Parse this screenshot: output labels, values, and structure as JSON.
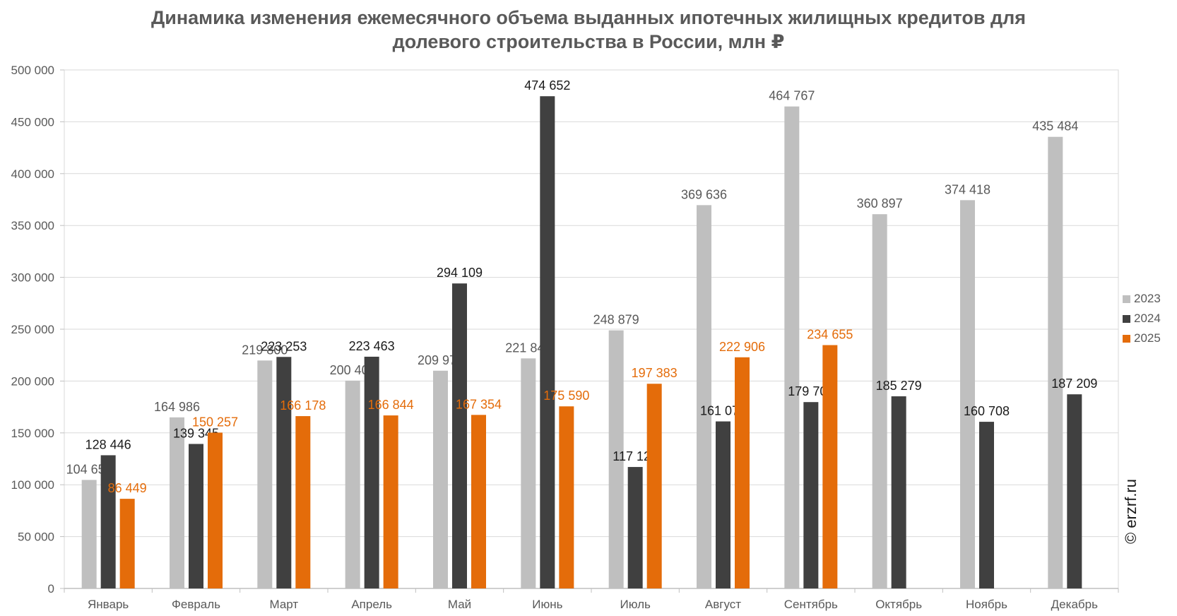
{
  "title_lines": [
    "Динамика изменения ежемесячного объема выданных ипотечных жилищных кредитов для",
    "долевого строительства в России, млн ₽"
  ],
  "watermark": "© erzrf.ru",
  "chart_data": {
    "type": "bar",
    "title": "Динамика изменения ежемесячного объема выданных ипотечных жилищных кредитов для долевого строительства в России, млн ₽",
    "categories": [
      "Январь",
      "Февраль",
      "Март",
      "Апрель",
      "Май",
      "Июнь",
      "Июль",
      "Август",
      "Сентябрь",
      "Октябрь",
      "Ноябрь",
      "Декабрь"
    ],
    "series": [
      {
        "name": "2023",
        "color": "#bfbfbf",
        "label_color": "#595959",
        "values": [
          104650,
          164986,
          219800,
          200407,
          209975,
          221848,
          248879,
          369636,
          464767,
          360897,
          374418,
          435484
        ],
        "labels": [
          "104 650",
          "164 986",
          "219 800",
          "200 407",
          "209 975",
          "221 848",
          "248 879",
          "369 636",
          "464 767",
          "360 897",
          "374 418",
          "435 484"
        ]
      },
      {
        "name": "2024",
        "color": "#404040",
        "label_color": "#1a1a1a",
        "values": [
          128446,
          139345,
          223253,
          223463,
          294109,
          474652,
          117125,
          161077,
          179703,
          185279,
          160708,
          187209
        ],
        "labels": [
          "128 446",
          "139 345",
          "223 253",
          "223 463",
          "294 109",
          "474 652",
          "117 125",
          "161 077",
          "179 703",
          "185 279",
          "160 708",
          "187 209"
        ]
      },
      {
        "name": "2025",
        "color": "#e46c0a",
        "label_color": "#e46c0a",
        "values": [
          86449,
          150257,
          166178,
          166844,
          167354,
          175590,
          197383,
          222906,
          234655,
          null,
          null,
          null
        ],
        "labels": [
          "86 449",
          "150 257",
          "166 178",
          "166 844",
          "167 354",
          "175 590",
          "197 383",
          "222 906",
          "234 655",
          null,
          null,
          null
        ]
      }
    ],
    "ylim": [
      0,
      500000
    ],
    "yticks": [
      0,
      50000,
      100000,
      150000,
      200000,
      250000,
      300000,
      350000,
      400000,
      450000,
      500000
    ],
    "ytick_labels": [
      "0",
      "50 000",
      "100 000",
      "150 000",
      "200 000",
      "250 000",
      "300 000",
      "350 000",
      "400 000",
      "450 000",
      "500 000"
    ],
    "grid": true,
    "legend": "right"
  }
}
